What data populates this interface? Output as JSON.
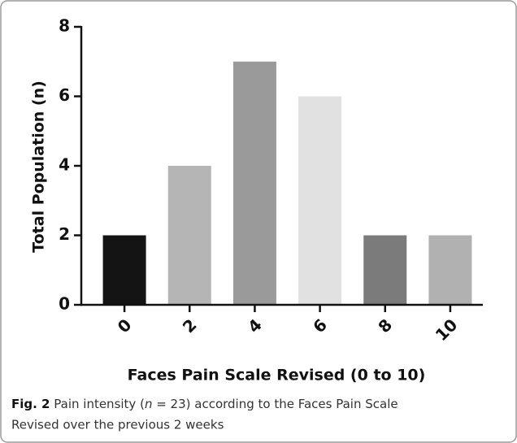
{
  "chart_data": {
    "type": "bar",
    "categories": [
      "0",
      "2",
      "4",
      "6",
      "8",
      "10"
    ],
    "values": [
      2,
      4,
      7,
      6,
      2,
      2
    ],
    "colors": [
      "#141414",
      "#b5b5b5",
      "#9a9a9a",
      "#e1e1e1",
      "#7b7b7b",
      "#b1b1b1"
    ],
    "x_label": "Faces Pain Scale Revised (0 to 10)",
    "y_label": "Total Population (n)",
    "ylim": [
      0,
      8
    ],
    "yticks": [
      0,
      2,
      4,
      6,
      8
    ],
    "grid": false,
    "caption": {
      "label": "Fig. 2",
      "parts": [
        "Pain intensity (",
        "n",
        " = 23) according to the Faces Pain Scale",
        "Revised over the previous 2 weeks"
      ]
    }
  }
}
